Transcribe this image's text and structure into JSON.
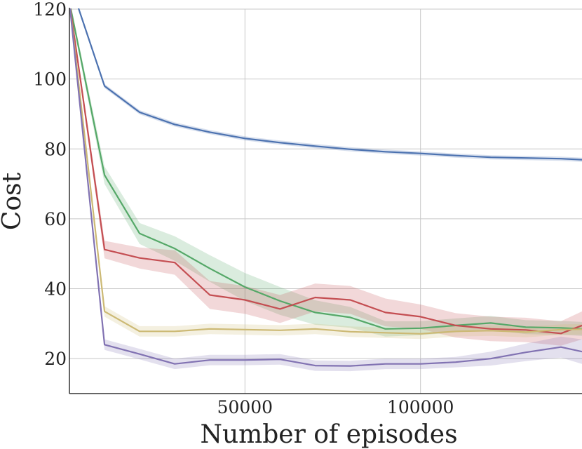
{
  "chart_data": {
    "type": "line",
    "title": "",
    "xlabel": "Number of episodes",
    "ylabel": "Cost",
    "xlim": [
      0,
      146000
    ],
    "ylim": [
      10,
      120
    ],
    "xticks": [
      50000,
      100000
    ],
    "yticks": [
      20,
      40,
      60,
      80,
      100,
      120
    ],
    "grid": true,
    "x": [
      0,
      10000,
      20000,
      30000,
      40000,
      50000,
      60000,
      70000,
      80000,
      90000,
      100000,
      110000,
      120000,
      130000,
      140000,
      146000
    ],
    "series": [
      {
        "color": "#4c72b0",
        "values": [
          128,
          98,
          90.5,
          87,
          84.8,
          83,
          81.8,
          80.8,
          79.9,
          79.2,
          78.7,
          78.1,
          77.6,
          77.4,
          77.2,
          76.9
        ],
        "band": [
          0.5,
          0.6,
          0.6,
          0.6,
          0.6,
          0.6,
          0.6,
          0.6,
          0.6,
          0.6,
          0.6,
          0.6,
          0.6,
          0.6,
          0.6,
          0.6
        ]
      },
      {
        "color": "#55a868",
        "values": [
          122,
          72.5,
          55.8,
          51.5,
          45.8,
          40.5,
          36.5,
          33.2,
          31.8,
          28.5,
          28.7,
          29.5,
          30.2,
          29,
          28.8,
          28.5
        ],
        "band": [
          1,
          2.5,
          3,
          3.5,
          3.8,
          4,
          4,
          3.5,
          3,
          2.2,
          2,
          2,
          2,
          2,
          2,
          2
        ]
      },
      {
        "color": "#c44e52",
        "values": [
          122,
          51.2,
          48.8,
          47.5,
          38.2,
          36.8,
          34.2,
          37.5,
          36.8,
          33.2,
          32,
          29.5,
          28.5,
          28.2,
          27.2,
          29.5
        ],
        "band": [
          1,
          2.5,
          3,
          3.5,
          4,
          4,
          4,
          4,
          4,
          4,
          3.5,
          3.5,
          3.5,
          3.5,
          3.5,
          4
        ]
      },
      {
        "color": "#ccb974",
        "values": [
          122,
          33.5,
          27.8,
          27.8,
          28.5,
          28.3,
          28.1,
          28.5,
          27.7,
          27.4,
          27.1,
          27.8,
          28,
          27.6,
          28.3,
          28.4
        ],
        "band": [
          1,
          1.5,
          1.5,
          1.5,
          1.5,
          1.5,
          1.5,
          1.5,
          1.5,
          1.5,
          1.5,
          1.5,
          1.5,
          1.5,
          1.5,
          1.5
        ]
      },
      {
        "color": "#8172b2",
        "values": [
          122,
          24,
          21.3,
          18.5,
          19.6,
          19.6,
          19.8,
          18,
          17.9,
          18.5,
          18.5,
          19,
          20,
          21.8,
          23.3,
          22
        ],
        "band": [
          1,
          1.5,
          1.5,
          1.5,
          1.5,
          1.5,
          1.5,
          1.5,
          1.5,
          1.5,
          1.5,
          1.5,
          2,
          2.5,
          3,
          3.5
        ]
      }
    ]
  }
}
